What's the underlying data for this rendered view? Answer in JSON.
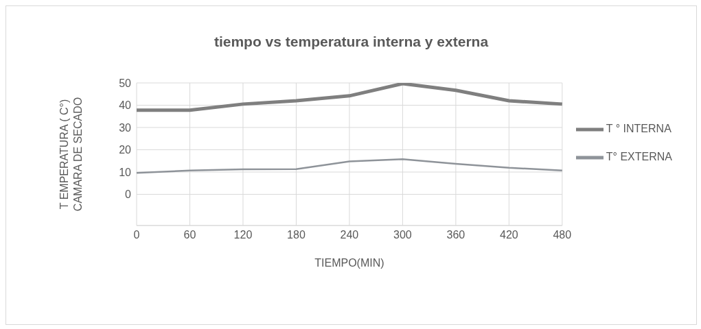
{
  "chart_data": {
    "type": "line",
    "title": "tiempo vs temperatura interna y externa",
    "xlabel": "TIEMPO(MIN)",
    "ylabel": "T EMPERATURA ( C°)\nCAMARA DE SECADO",
    "categories": [
      "0",
      "60",
      "120",
      "180",
      "240",
      "300",
      "360",
      "420",
      "480"
    ],
    "series": [
      {
        "name": "T ° INTERNA",
        "color": "#7f7f7f",
        "values": [
          37.8,
          37.8,
          40.5,
          42,
          44.2,
          49.7,
          46.7,
          42,
          40.5
        ]
      },
      {
        "name": "T° EXTERNA",
        "color": "#8e9399",
        "values": [
          9.6,
          10.7,
          11.2,
          11.3,
          14.8,
          15.8,
          13.7,
          11.9,
          10.7
        ]
      }
    ],
    "ylim": [
      -14,
      50
    ],
    "yticks": [
      0,
      10,
      20,
      30,
      40,
      50
    ],
    "grid": true,
    "legend": "right",
    "marker": "none",
    "line_style": "solid"
  }
}
